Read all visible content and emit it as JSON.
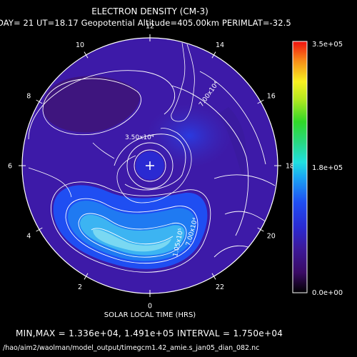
{
  "chart_data": {
    "type": "heatmap",
    "projection": "polar",
    "title": "ELECTRON DENSITY (CM-3)",
    "subtitle": "DAY= 21 UT=18.17 Geopotential Altitude=405.00km PERIMLAT=-32.5",
    "xlabel": "SOLAR LOCAL TIME (HRS)",
    "local_time_ticks": [
      "0",
      "2",
      "4",
      "6",
      "8",
      "10",
      "12",
      "14",
      "16",
      "18",
      "20",
      "22"
    ],
    "colorbar": {
      "min_label": "0.0e+00",
      "mid_label": "1.8e+05",
      "max_label": "3.5e+05",
      "range": [
        0,
        350000
      ]
    },
    "contour_labels": [
      "3.50x10⁴",
      "7.00x10⁴",
      "7.00x10⁴",
      "1.05x10⁵"
    ],
    "min_value": 13360,
    "max_value": 149100,
    "interval": 17500,
    "summary_text": "MIN,MAX =  1.336e+04, 1.491e+05 INTERVAL =  1.750e+04",
    "file_path": "/hao/aim2/waolman/model_output/timegcm1.42_amie.s_jan05_dian_082.nc"
  }
}
